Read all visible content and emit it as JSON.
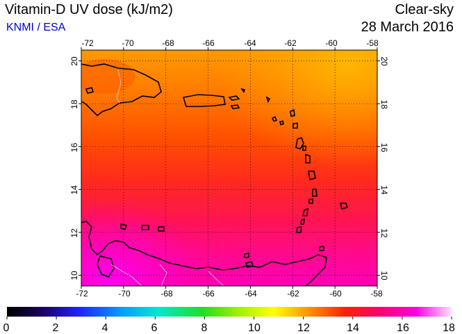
{
  "header": {
    "title": "Vitamin-D UV dose (kJ/m2)",
    "source": "KNMI / ESA",
    "condition": "Clear-sky",
    "date": "28 March 2016"
  },
  "map": {
    "lon_range": [
      -72,
      -58
    ],
    "lat_range": [
      9.5,
      20.5
    ],
    "lon_ticks": [
      "-72",
      "-70",
      "-68",
      "-66",
      "-64",
      "-62",
      "-60",
      "-58"
    ],
    "lat_ticks": [
      "10",
      "12",
      "14",
      "16",
      "18",
      "20"
    ],
    "field_colors": [
      "#ffb000",
      "#ff8c00",
      "#ff4a00",
      "#ff1a3c",
      "#ff0e9a",
      "#ff00e0"
    ]
  },
  "colorbar": {
    "range": [
      0,
      18
    ],
    "tick_labels": [
      "0",
      "2",
      "4",
      "6",
      "8",
      "10",
      "12",
      "14",
      "16",
      "18"
    ]
  }
}
